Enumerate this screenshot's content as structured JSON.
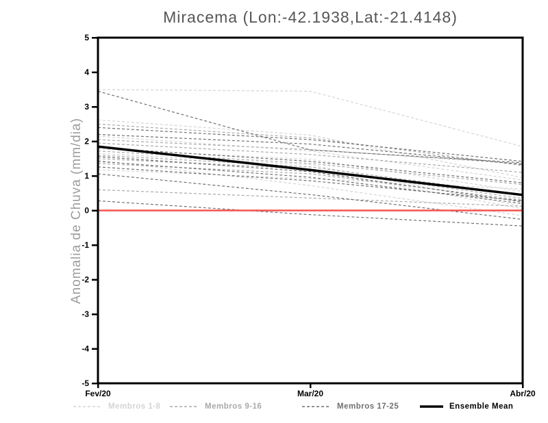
{
  "title": "Miracema (Lon:-42.1938,Lat:-21.4148)",
  "chart_data": {
    "type": "line",
    "title": "Miracema (Lon:-42.1938,Lat:-21.4148)",
    "xlabel": "",
    "ylabel": "Anomalia de Chuva (mm/dia)",
    "x_categories": [
      "Fev/20",
      "Mar/20",
      "Abr/20"
    ],
    "ylim": [
      -5,
      5
    ],
    "yticks": [
      5,
      4,
      3,
      2,
      1,
      0,
      -1,
      -2,
      -3,
      -4,
      -5
    ],
    "grid": false,
    "legend_position": "bottom",
    "frame_color": "#000000",
    "title_color": "#565656",
    "ylabel_color": "#9c9c9c",
    "zero_line": {
      "value": 0,
      "color": "#f4524e"
    },
    "groups": [
      {
        "label": "Membros 1-8",
        "color": "#d4d4d4",
        "style": "dashed",
        "width": 1.2
      },
      {
        "label": "Membros 9-16",
        "color": "#a9a9a9",
        "style": "dashed",
        "width": 1.2
      },
      {
        "label": "Membros 17-25",
        "color": "#6f6f6f",
        "style": "dashed",
        "width": 1.2
      },
      {
        "label": "Ensemble Mean",
        "color": "#000000",
        "style": "solid",
        "width": 3.5
      }
    ],
    "series": [
      {
        "group": 0,
        "values": [
          3.5,
          3.45,
          1.85
        ]
      },
      {
        "group": 0,
        "values": [
          2.62,
          2.18,
          0.95
        ]
      },
      {
        "group": 0,
        "values": [
          2.15,
          1.72,
          0.88
        ]
      },
      {
        "group": 0,
        "values": [
          1.78,
          1.48,
          0.55
        ]
      },
      {
        "group": 0,
        "values": [
          1.65,
          1.32,
          0.12
        ]
      },
      {
        "group": 0,
        "values": [
          1.55,
          1.18,
          0.05
        ]
      },
      {
        "group": 0,
        "values": [
          1.45,
          0.72,
          -0.15
        ]
      },
      {
        "group": 0,
        "values": [
          1.18,
          0.92,
          0.62
        ]
      },
      {
        "group": 1,
        "values": [
          2.5,
          2.1,
          1.3
        ]
      },
      {
        "group": 1,
        "values": [
          2.05,
          1.76,
          1.35
        ]
      },
      {
        "group": 1,
        "values": [
          1.95,
          1.62,
          1.1
        ]
      },
      {
        "group": 1,
        "values": [
          1.72,
          1.36,
          0.75
        ]
      },
      {
        "group": 1,
        "values": [
          1.6,
          1.26,
          0.45
        ]
      },
      {
        "group": 1,
        "values": [
          1.5,
          1.2,
          0.35
        ]
      },
      {
        "group": 1,
        "values": [
          1.36,
          1.06,
          0.3
        ]
      },
      {
        "group": 1,
        "values": [
          0.6,
          0.36,
          0.12
        ]
      },
      {
        "group": 2,
        "values": [
          3.45,
          1.75,
          1.38
        ]
      },
      {
        "group": 2,
        "values": [
          2.4,
          2.05,
          1.42
        ]
      },
      {
        "group": 2,
        "values": [
          2.2,
          1.92,
          1.33
        ]
      },
      {
        "group": 2,
        "values": [
          1.82,
          1.42,
          0.8
        ]
      },
      {
        "group": 2,
        "values": [
          1.56,
          1.12,
          0.25
        ]
      },
      {
        "group": 2,
        "values": [
          1.42,
          0.96,
          0.2
        ]
      },
      {
        "group": 2,
        "values": [
          1.26,
          0.86,
          0.28
        ]
      },
      {
        "group": 2,
        "values": [
          1.06,
          0.46,
          -0.26
        ]
      },
      {
        "group": 2,
        "values": [
          0.28,
          -0.12,
          -0.45
        ]
      },
      {
        "group": 3,
        "values": [
          1.85,
          1.17,
          0.45
        ]
      }
    ]
  }
}
